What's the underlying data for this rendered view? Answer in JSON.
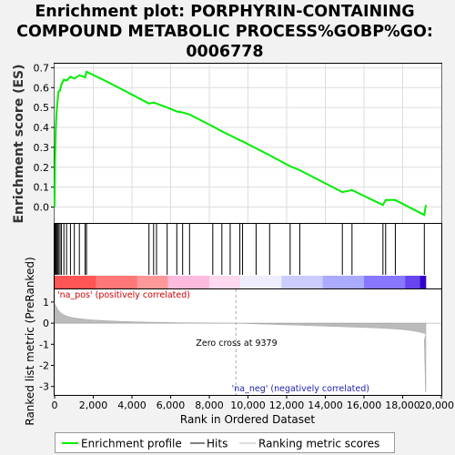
{
  "title_lines": [
    "Enrichment plot: PORPHYRIN-CONTAINING",
    "COMPOUND METABOLIC PROCESS%GOBP%GO:",
    "0006778"
  ],
  "chart_data": {
    "type": "line",
    "title": "Enrichment plot: PORPHYRIN-CONTAINING COMPOUND METABOLIC PROCESS%GOBP%GO:0006778",
    "xlabel": "Rank in Ordered Dataset",
    "ylabel_top": "Enrichment score (ES)",
    "ylabel_bottom": "Ranked list metric (PreRanked)",
    "x_range": [
      0,
      20000
    ],
    "x_ticks": [
      "0",
      "2,000",
      "4,000",
      "6,000",
      "8,000",
      "10,000",
      "12,000",
      "14,000",
      "16,000",
      "18,000",
      "20,000"
    ],
    "x_tick_values": [
      0,
      2000,
      4000,
      6000,
      8000,
      10000,
      12000,
      14000,
      16000,
      18000,
      20000
    ],
    "es_ylim": [
      -0.08,
      0.72
    ],
    "es_ticks": [
      "0.0",
      "0.1",
      "0.2",
      "0.3",
      "0.4",
      "0.5",
      "0.6",
      "0.7"
    ],
    "es_tick_values": [
      0,
      0.1,
      0.2,
      0.3,
      0.4,
      0.5,
      0.6,
      0.7
    ],
    "metric_ylim": [
      -3.4,
      1.6
    ],
    "metric_ticks": [
      "1",
      "0",
      "-1",
      "-2",
      "-3"
    ],
    "metric_tick_values": [
      1,
      0,
      -1,
      -2,
      -3
    ],
    "n_genes": 19200,
    "zero_cross": 9379,
    "zero_cross_label": "Zero cross at 9379",
    "pos_label": "'na_pos' (positively correlated)",
    "neg_label": "'na_neg' (negatively correlated)",
    "hits": [
      20,
      60,
      100,
      150,
      200,
      280,
      350,
      480,
      620,
      820,
      1020,
      1280,
      1580,
      1650,
      4880,
      5120,
      5270,
      5820,
      6320,
      6620,
      6980,
      8180,
      8650,
      9080,
      9580,
      9720,
      10420,
      11120,
      12180,
      12680,
      14880,
      15380,
      16980,
      17120,
      17620,
      19120
    ],
    "es_curve": {
      "x": [
        0,
        20,
        60,
        100,
        150,
        200,
        280,
        350,
        480,
        620,
        820,
        1020,
        1280,
        1580,
        1650,
        2500,
        3500,
        4880,
        5120,
        5270,
        5820,
        6320,
        6620,
        6980,
        8180,
        8650,
        9080,
        9580,
        9720,
        10420,
        11120,
        12180,
        12680,
        14880,
        15380,
        16980,
        17120,
        17620,
        19120,
        19200
      ],
      "y": [
        0.0,
        0.22,
        0.39,
        0.47,
        0.53,
        0.58,
        0.585,
        0.615,
        0.64,
        0.635,
        0.655,
        0.645,
        0.662,
        0.652,
        0.68,
        0.64,
        0.59,
        0.52,
        0.525,
        0.52,
        0.5,
        0.48,
        0.475,
        0.465,
        0.405,
        0.38,
        0.36,
        0.335,
        0.33,
        0.295,
        0.26,
        0.205,
        0.185,
        0.075,
        0.085,
        0.01,
        0.035,
        0.035,
        -0.04,
        0.01
      ]
    },
    "series": [
      {
        "name": "Enrichment profile",
        "color": "#00ee00"
      },
      {
        "name": "Hits",
        "color": "#000000"
      },
      {
        "name": "Ranking metric scores",
        "color": "#bbbbbb"
      }
    ],
    "legend_placement": "bottom"
  }
}
